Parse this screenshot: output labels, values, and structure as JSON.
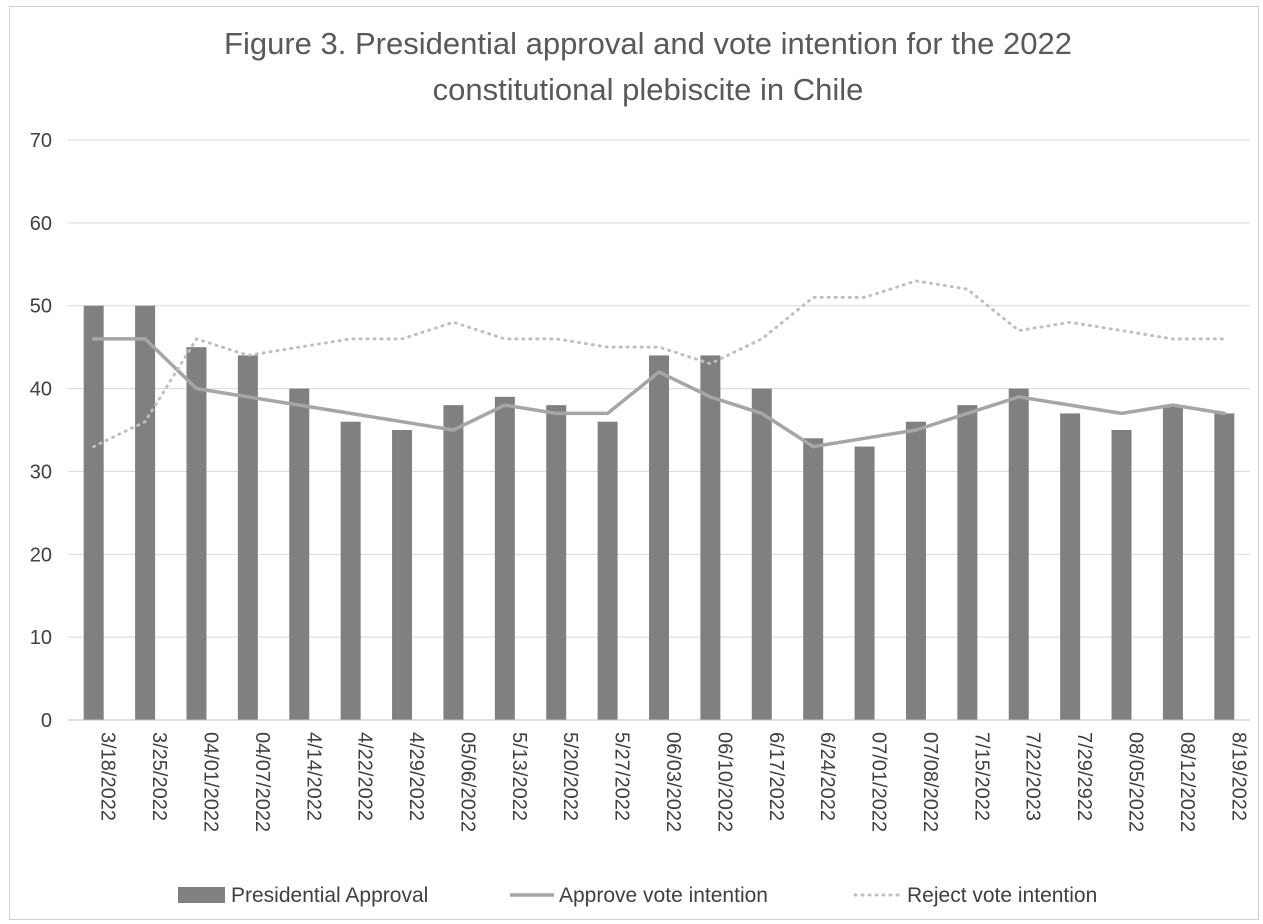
{
  "chart_data": {
    "type": "bar",
    "title_lines": [
      "Figure 3. Presidential approval and vote intention for the 2022",
      "constitutional plebiscite in Chile"
    ],
    "categories": [
      "3/18/2022",
      "3/25/2022",
      "04/01/2022",
      "04/07/2022",
      "4/14/2022",
      "4/22/2022",
      "4/29/2022",
      "05/06/2022",
      "5/13/2022",
      "5/20/2022",
      "5/27/2022",
      "06/03/2022",
      "06/10/2022",
      "6/17/2022",
      "6/24/2022",
      "07/01/2022",
      "07/08/2022",
      "7/15/2022",
      "7/22/2023",
      "7/29/2922",
      "08/05/2022",
      "08/12/2022",
      "8/19/2022"
    ],
    "ylim": [
      0,
      70
    ],
    "yticks": [
      0,
      10,
      20,
      30,
      40,
      50,
      60,
      70
    ],
    "grid": true,
    "legend_position": "bottom",
    "series": [
      {
        "name": "Presidential Approval",
        "kind": "bar",
        "color": "#808080",
        "values": [
          50,
          50,
          45,
          44,
          40,
          36,
          35,
          38,
          39,
          38,
          36,
          44,
          44,
          40,
          34,
          33,
          36,
          38,
          40,
          37,
          35,
          38,
          37
        ]
      },
      {
        "name": "Approve vote intention",
        "kind": "line",
        "style": "solid",
        "color": "#a6a6a6",
        "values": [
          46,
          46,
          40,
          39,
          38,
          37,
          36,
          35,
          38,
          37,
          37,
          42,
          39,
          37,
          33,
          34,
          35,
          37,
          39,
          38,
          37,
          38,
          37
        ]
      },
      {
        "name": "Reject vote intention",
        "kind": "line",
        "style": "dotted",
        "color": "#bfbfbf",
        "values": [
          33,
          36,
          46,
          44,
          45,
          46,
          46,
          48,
          46,
          46,
          45,
          45,
          43,
          46,
          51,
          51,
          53,
          52,
          47,
          48,
          47,
          46,
          46
        ]
      }
    ]
  }
}
